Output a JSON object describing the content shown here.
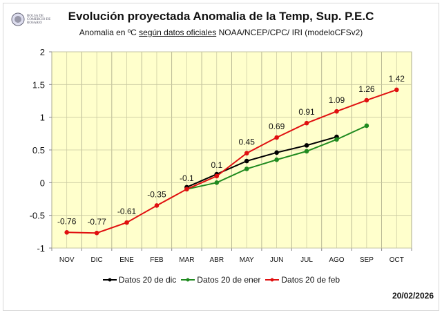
{
  "header": {
    "logo_text": "BOLSA DE COMERCIO DE ROSARIO",
    "title": "Evolución proyectada Anomalia de la Temp, Sup.  P.E.C",
    "subtitle_pre": "Anomalia en ºC ",
    "subtitle_underlined": "según datos oficiales",
    "subtitle_post": " NOAA/NCEP/CPC/ IRI (modeloCFSv2)"
  },
  "date": "20/02/2026",
  "colors": {
    "plot_bg": "#ffffcc",
    "grid": "#c8c8a0",
    "dic": "#000000",
    "ener": "#1f8a1f",
    "feb": "#e01010"
  },
  "chart_data": {
    "type": "line",
    "title": "Evolución proyectada Anomalia de la Temp, Sup.  P.E.C",
    "subtitle": "Anomalia en ºC según datos oficiales NOAA/NCEP/CPC/ IRI (modeloCFSv2)",
    "categories": [
      "NOV",
      "DIC",
      "ENE",
      "FEB",
      "MAR",
      "ABR",
      "MAY",
      "JUN",
      "JUL",
      "AGO",
      "SEP",
      "OCT"
    ],
    "ylim": [
      -1,
      2
    ],
    "yticks": [
      -1,
      -0.5,
      0,
      0.5,
      1,
      1.5,
      2
    ],
    "ytick_labels": [
      "-1",
      "-0.5",
      "0",
      "0.5",
      "1",
      "1.5",
      "2"
    ],
    "grid": true,
    "legend_position": "bottom",
    "series": [
      {
        "name": "Datos 20 de dic",
        "color": "#000000",
        "values": [
          null,
          null,
          null,
          null,
          -0.07,
          0.13,
          0.33,
          0.46,
          0.57,
          0.7,
          null,
          null
        ],
        "labels": []
      },
      {
        "name": "Datos 20 de ener",
        "color": "#1f8a1f",
        "values": [
          null,
          null,
          null,
          null,
          -0.1,
          0.0,
          0.21,
          0.35,
          0.48,
          0.66,
          0.87,
          null
        ],
        "labels": []
      },
      {
        "name": "Datos 20 de feb",
        "color": "#e01010",
        "values": [
          -0.76,
          -0.77,
          -0.61,
          -0.35,
          -0.1,
          0.1,
          0.45,
          0.69,
          0.91,
          1.09,
          1.26,
          1.42
        ],
        "labels": [
          "-0.76",
          "-0.77",
          "-0.61",
          "-0.35",
          "-0.1",
          "0.1",
          "0.45",
          "0.69",
          "0.91",
          "1.09",
          "1.26",
          "1.42"
        ]
      }
    ]
  }
}
